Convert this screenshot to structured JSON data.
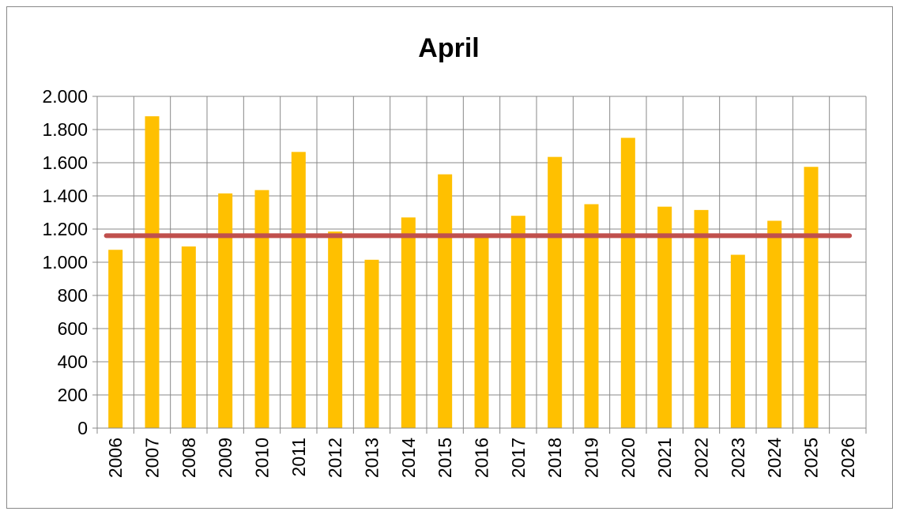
{
  "chart_data": {
    "type": "bar",
    "title": "April",
    "xlabel": "",
    "ylabel": "",
    "categories": [
      "2006",
      "2007",
      "2008",
      "2009",
      "2010",
      "2011",
      "2012",
      "2013",
      "2014",
      "2015",
      "2016",
      "2017",
      "2018",
      "2019",
      "2020",
      "2021",
      "2022",
      "2023",
      "2024",
      "2025",
      "2026"
    ],
    "values": [
      1075,
      1880,
      1095,
      1415,
      1435,
      1665,
      1185,
      1015,
      1270,
      1530,
      1155,
      1280,
      1635,
      1350,
      1750,
      1335,
      1315,
      1045,
      1250,
      1575,
      null
    ],
    "y_tick_labels": [
      "0",
      "200",
      "400",
      "600",
      "800",
      "1.000",
      "1.200",
      "1.400",
      "1.600",
      "1.800",
      "2.000"
    ],
    "y_tick_values": [
      0,
      200,
      400,
      600,
      800,
      1000,
      1200,
      1400,
      1600,
      1800,
      2000
    ],
    "ylim": [
      0,
      2000
    ],
    "average_line": 1160,
    "grid": true,
    "legend": "none",
    "colors": {
      "bar": "#FFC000",
      "average_line": "#C0504D",
      "grid": "#888888",
      "axis": "#888888"
    }
  }
}
